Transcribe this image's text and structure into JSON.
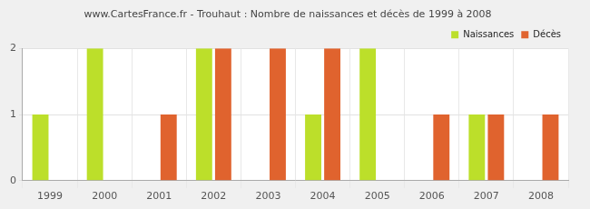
{
  "chart_data": {
    "type": "bar",
    "title": "www.CartesFrance.fr - Trouhaut : Nombre de naissances et décès de 1999 à 2008",
    "categories": [
      "1999",
      "2000",
      "2001",
      "2002",
      "2003",
      "2004",
      "2005",
      "2006",
      "2007",
      "2008"
    ],
    "series": [
      {
        "name": "Naissances",
        "color": "#bcdf2a",
        "values": [
          1,
          2,
          0,
          2,
          0,
          1,
          2,
          0,
          1,
          0
        ]
      },
      {
        "name": "Décès",
        "color": "#e0632e",
        "values": [
          0,
          0,
          1,
          2,
          2,
          2,
          0,
          1,
          1,
          1
        ]
      }
    ],
    "ylim": [
      0,
      2
    ],
    "yticks": [
      0,
      1,
      2
    ],
    "grid": true,
    "legend": "upper right"
  }
}
